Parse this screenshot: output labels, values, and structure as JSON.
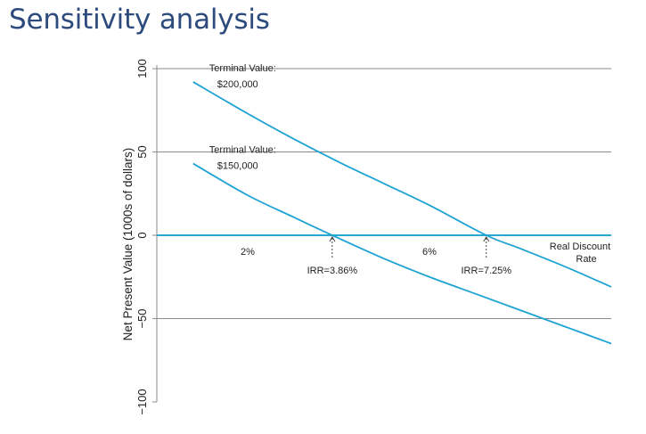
{
  "page": {
    "title": "Sensitivity analysis"
  },
  "chart_data": {
    "type": "line",
    "title": "",
    "xlabel": "Real Discount Rate",
    "ylabel": "Net Present Value (1000s of dollars)",
    "xlim": [
      0,
      10
    ],
    "ylim": [
      -100,
      100
    ],
    "yticks": [
      100,
      50,
      0,
      -50,
      -100
    ],
    "ytick_labels": [
      "100",
      "50",
      "0",
      "−50",
      "−100"
    ],
    "xticks": [
      2,
      6
    ],
    "xtick_labels": [
      "2%",
      "6%"
    ],
    "grid": true,
    "series": [
      {
        "label_line1": "Terminal Value:",
        "label_line2": "$200,000",
        "color": "#1ea3d3",
        "x": [
          0.8,
          2,
          3,
          4,
          5,
          6,
          7.25,
          8,
          9,
          10
        ],
        "y": [
          92,
          73,
          58,
          44,
          31,
          18,
          0,
          -8,
          -19,
          -31
        ]
      },
      {
        "label_line1": "Terminal Value:",
        "label_line2": "$150,000",
        "color": "#1ea3d3",
        "x": [
          0.8,
          2,
          3,
          3.86,
          5,
          6,
          7,
          8,
          9,
          10
        ],
        "y": [
          43,
          24,
          11,
          0,
          -14,
          -25,
          -35,
          -45,
          -55,
          -65
        ]
      }
    ],
    "annotations": [
      {
        "text": "IRR=3.86%",
        "x": 3.86,
        "y": 0
      },
      {
        "text": "IRR=7.25%",
        "x": 7.25,
        "y": 0
      }
    ]
  }
}
